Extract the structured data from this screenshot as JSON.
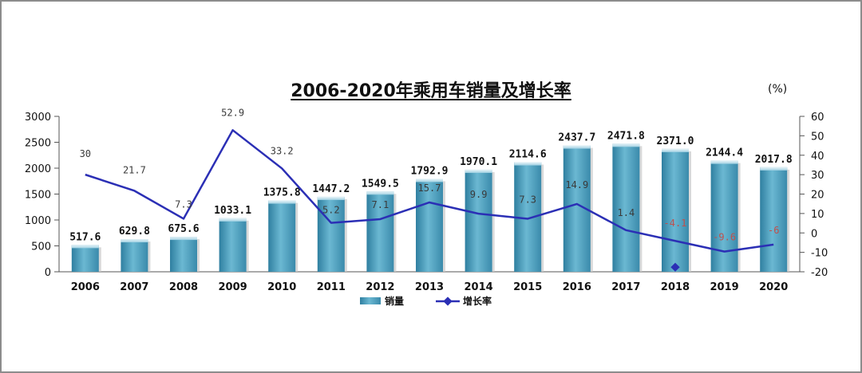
{
  "chart_data": {
    "type": "bar",
    "title": "2006-2020年乘用车销量及增长率",
    "unit_right": "(%)",
    "categories": [
      "2006",
      "2007",
      "2008",
      "2009",
      "2010",
      "2011",
      "2012",
      "2013",
      "2014",
      "2015",
      "2016",
      "2017",
      "2018",
      "2019",
      "2020"
    ],
    "series": [
      {
        "name": "销量",
        "type": "bar",
        "axis": "left",
        "color": "#4a9ab8",
        "values": [
          517.6,
          629.8,
          675.6,
          1033.1,
          1375.8,
          1447.2,
          1549.5,
          1792.9,
          1970.1,
          2114.6,
          2437.7,
          2471.8,
          2371.0,
          2144.4,
          2017.8
        ],
        "labels": [
          "517.6",
          "629.8",
          "675.6",
          "1033.1",
          "1375.8",
          "1447.2",
          "1549.5",
          "1792.9",
          "1970.1",
          "2114.6",
          "2437.7",
          "2471.8",
          "2371.0",
          "2144.4",
          "2017.8"
        ]
      },
      {
        "name": "增长率",
        "type": "line",
        "axis": "right",
        "color": "#2b2fb5",
        "values": [
          30,
          21.7,
          7.3,
          52.9,
          33.2,
          5.2,
          7.1,
          15.7,
          9.9,
          7.3,
          14.9,
          1.4,
          -4.1,
          -9.6,
          -6
        ],
        "labels": [
          "30",
          "21.7",
          "7.3",
          "52.9",
          "33.2",
          "5.2",
          "7.1",
          "15.7",
          "9.9",
          "7.3",
          "14.9",
          "1.4",
          "-4.1",
          "-9.6",
          "-6"
        ]
      }
    ],
    "y_left": {
      "min": 0,
      "max": 3000,
      "step": 500,
      "ticks": [
        "0",
        "500",
        "1000",
        "1500",
        "2000",
        "2500",
        "3000"
      ]
    },
    "y_right": {
      "min": -20,
      "max": 60,
      "step": 10,
      "ticks": [
        "-20",
        "-10",
        "0",
        "10",
        "20",
        "30",
        "40",
        "50",
        "60"
      ]
    },
    "legend": {
      "placement": "bottom-center"
    },
    "grid": false,
    "negative_label_color": "#c0504d"
  }
}
